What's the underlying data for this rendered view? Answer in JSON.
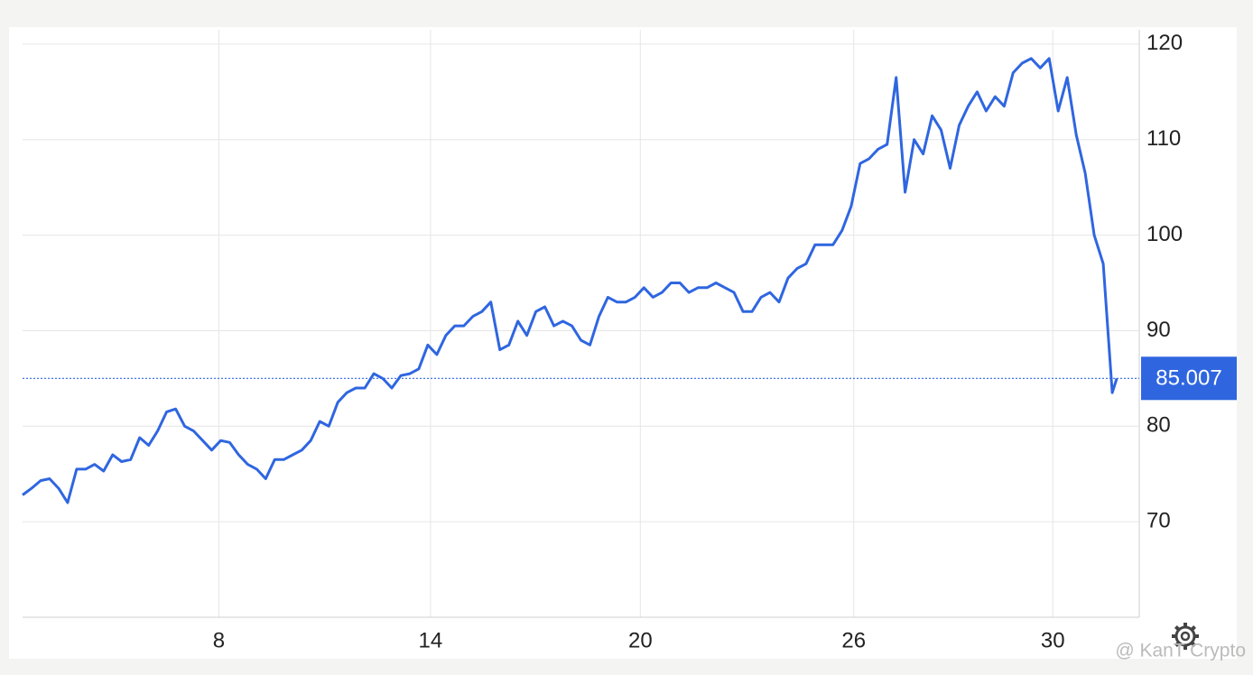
{
  "chart_data": {
    "type": "line",
    "x": [
      0,
      1,
      2,
      3,
      4,
      5,
      6,
      7,
      8,
      9,
      10,
      11,
      12,
      13,
      14,
      15,
      16,
      17,
      18,
      19,
      20,
      21,
      22,
      23,
      24,
      25,
      26,
      27,
      28,
      29,
      30,
      31,
      32,
      33,
      34,
      35,
      36,
      37,
      38,
      39,
      40,
      41,
      42,
      43,
      44,
      45,
      46,
      47,
      48,
      49,
      50,
      51,
      52,
      53,
      54,
      55,
      56,
      57,
      58,
      59,
      60,
      61,
      62,
      63,
      64,
      65,
      66,
      67,
      68,
      69,
      70,
      71,
      72,
      73,
      74,
      75,
      76,
      77,
      78,
      79,
      80,
      81,
      82,
      83,
      84,
      85,
      86,
      87,
      88,
      89,
      90,
      91,
      92,
      93,
      94,
      95,
      96,
      97,
      98,
      99,
      100,
      101,
      102,
      103,
      104,
      105,
      106,
      107,
      108,
      109,
      110,
      111,
      112,
      113,
      114,
      115,
      116,
      117,
      118,
      119,
      120,
      121,
      121.5
    ],
    "values": [
      72.8,
      73.5,
      74.3,
      74.5,
      73.5,
      72.0,
      75.5,
      75.5,
      76.0,
      75.3,
      77.0,
      76.3,
      76.5,
      78.8,
      78.0,
      79.5,
      81.5,
      81.8,
      80.0,
      79.5,
      78.5,
      77.5,
      78.5,
      78.3,
      77.0,
      76.0,
      75.5,
      74.5,
      76.5,
      76.5,
      77.0,
      77.5,
      78.5,
      80.5,
      80.0,
      82.5,
      83.5,
      84.0,
      84.0,
      85.5,
      85.0,
      84.0,
      85.3,
      85.5,
      86.0,
      88.5,
      87.5,
      89.5,
      90.5,
      90.5,
      91.5,
      92.0,
      93.0,
      88.0,
      88.5,
      91.0,
      89.5,
      92.0,
      92.5,
      90.5,
      91.0,
      90.5,
      89.0,
      88.5,
      91.5,
      93.5,
      93.0,
      93.0,
      93.5,
      94.5,
      93.5,
      94.0,
      95.0,
      95.0,
      94.0,
      94.5,
      94.5,
      95.0,
      94.5,
      94.0,
      92.0,
      92.0,
      93.5,
      94.0,
      93.0,
      95.5,
      96.5,
      97.0,
      99.0,
      99.0,
      99.0,
      100.5,
      103.0,
      107.5,
      108.0,
      109.0,
      109.5,
      116.5,
      104.5,
      110.0,
      108.5,
      112.5,
      111.0,
      107.0,
      111.5,
      113.5,
      115.0,
      113.0,
      114.5,
      113.5,
      117.0,
      118.0,
      118.5,
      117.5,
      118.5,
      113.0,
      116.5,
      110.5,
      106.5,
      100.0,
      97.0,
      83.5,
      85.007
    ],
    "color": "#2f66e0",
    "xlim": [
      0,
      124
    ],
    "xticks": [
      {
        "value": 21.8,
        "label": "8"
      },
      {
        "value": 45.3,
        "label": "14"
      },
      {
        "value": 68.6,
        "label": "20"
      },
      {
        "value": 92.3,
        "label": "26"
      },
      {
        "value": 114.4,
        "label": "30"
      }
    ],
    "ylim": [
      60,
      121.5
    ],
    "yticks": [
      70,
      80,
      90,
      100,
      110,
      120
    ],
    "grid": true,
    "watermark": "@ KanT Crypto"
  }
}
